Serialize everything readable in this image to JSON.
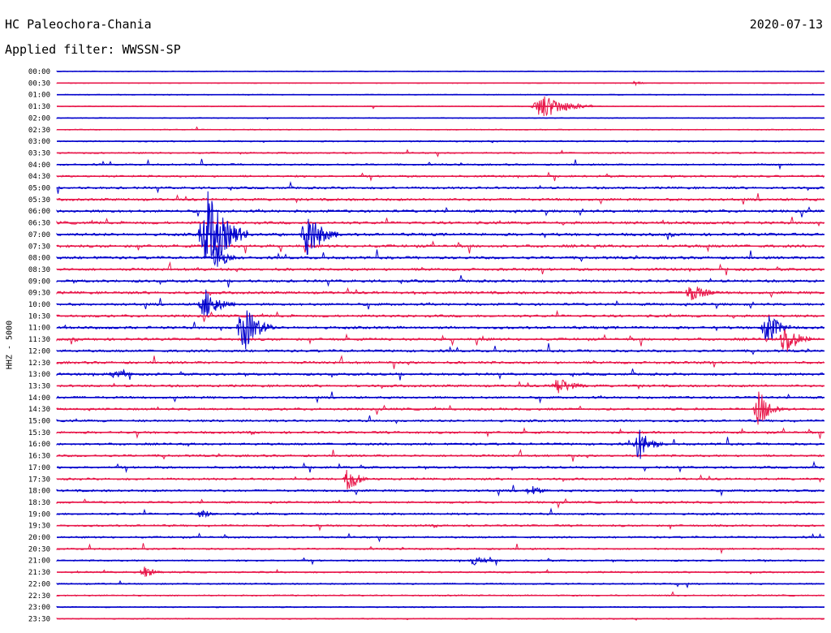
{
  "header": {
    "station": "HC Paleochora-Chania",
    "date": "2020-07-13",
    "filter": "Applied filter: WWSSN-SP"
  },
  "y_axis_label": "HHZ - 5000",
  "colors": {
    "even_trace": "#0000cc",
    "odd_trace": "#e8174a",
    "background": "#ffffff"
  },
  "chart_data": {
    "type": "line",
    "title": "HC Paleochora-Chania",
    "ylabel": "HHZ - 5000",
    "grid": false,
    "row_interval_minutes": 30,
    "row_labels": [
      "00:00",
      "00:30",
      "01:00",
      "01:30",
      "02:00",
      "02:30",
      "03:00",
      "03:30",
      "04:00",
      "04:30",
      "05:00",
      "05:30",
      "06:00",
      "06:30",
      "07:00",
      "07:30",
      "08:00",
      "08:30",
      "09:00",
      "09:30",
      "10:00",
      "10:30",
      "11:00",
      "11:30",
      "12:00",
      "12:30",
      "13:00",
      "13:30",
      "14:00",
      "14:30",
      "15:00",
      "15:30",
      "16:00",
      "16:30",
      "17:00",
      "17:30",
      "18:00",
      "18:30",
      "19:00",
      "19:30",
      "20:00",
      "20:30",
      "21:00",
      "21:30",
      "22:00",
      "22:30",
      "23:00",
      "23:30"
    ],
    "row_activity": [
      0.08,
      0.08,
      0.12,
      0.14,
      0.1,
      0.16,
      0.35,
      0.4,
      0.5,
      0.6,
      0.75,
      0.85,
      0.9,
      0.95,
      1.0,
      1.0,
      0.95,
      0.9,
      0.9,
      0.9,
      0.85,
      0.85,
      0.9,
      0.9,
      0.85,
      0.85,
      0.8,
      0.8,
      0.75,
      0.75,
      0.75,
      0.75,
      0.75,
      0.7,
      0.7,
      0.7,
      0.7,
      0.65,
      0.65,
      0.6,
      0.55,
      0.5,
      0.45,
      0.45,
      0.4,
      0.35,
      0.25,
      0.2
    ],
    "events": [
      {
        "row": 3,
        "minute": 18.5,
        "amplitude": 16,
        "duration_min": 2.5
      },
      {
        "row": 1,
        "minute": 22.5,
        "amplitude": 6,
        "duration_min": 0.5
      },
      {
        "row": 14,
        "minute": 5.5,
        "amplitude": 55,
        "duration_min": 2
      },
      {
        "row": 14,
        "minute": 9.5,
        "amplitude": 32,
        "duration_min": 1.5
      },
      {
        "row": 16,
        "minute": 6,
        "amplitude": 22,
        "duration_min": 1
      },
      {
        "row": 20,
        "minute": 5.5,
        "amplitude": 20,
        "duration_min": 1.5
      },
      {
        "row": 22,
        "minute": 7,
        "amplitude": 32,
        "duration_min": 1.5
      },
      {
        "row": 23,
        "minute": 28.2,
        "amplitude": 22,
        "duration_min": 1.3
      },
      {
        "row": 22,
        "minute": 27.5,
        "amplitude": 25,
        "duration_min": 1.2
      },
      {
        "row": 26,
        "minute": 2,
        "amplitude": 7,
        "duration_min": 1.2
      },
      {
        "row": 27,
        "minute": 19.3,
        "amplitude": 12,
        "duration_min": 1.5
      },
      {
        "row": 29,
        "minute": 27.2,
        "amplitude": 25,
        "duration_min": 1.2
      },
      {
        "row": 32,
        "minute": 22.5,
        "amplitude": 22,
        "duration_min": 1.2
      },
      {
        "row": 35,
        "minute": 11.2,
        "amplitude": 20,
        "duration_min": 1
      },
      {
        "row": 19,
        "minute": 24.5,
        "amplitude": 12,
        "duration_min": 1.5
      },
      {
        "row": 36,
        "minute": 18.3,
        "amplitude": 8,
        "duration_min": 1
      },
      {
        "row": 38,
        "minute": 5.5,
        "amplitude": 8,
        "duration_min": 0.8
      },
      {
        "row": 42,
        "minute": 16,
        "amplitude": 6,
        "duration_min": 1.5
      },
      {
        "row": 43,
        "minute": 3.2,
        "amplitude": 9,
        "duration_min": 1
      }
    ]
  }
}
